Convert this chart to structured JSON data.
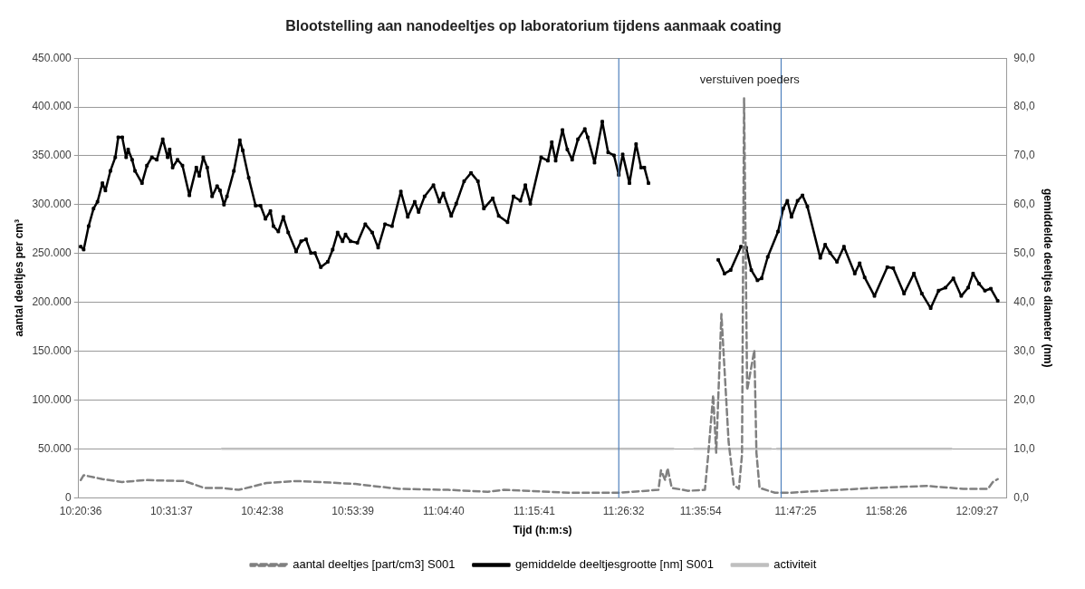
{
  "chart_data": {
    "type": "line",
    "title": "Blootstelling aan nanodeeltjes op laboratorium tijdens aanmaak coating",
    "xlabel": "Tijd (h:m:s)",
    "ylabel": "aantal deeltjes per cm³",
    "y2label": "gemiddelde deeltjes diameter (nm)",
    "xlim": [
      10.339,
      12.217
    ],
    "xticks": [
      {
        "value": 10.3433,
        "label": "10:20:36"
      },
      {
        "value": 10.5269,
        "label": "10:31:37"
      },
      {
        "value": 10.7106,
        "label": "10:42:38"
      },
      {
        "value": 10.8942,
        "label": "10:53:39"
      },
      {
        "value": 11.0778,
        "label": "11:04:40"
      },
      {
        "value": 11.2614,
        "label": "11:15:41"
      },
      {
        "value": 11.4422,
        "label": "11:26:32"
      },
      {
        "value": 11.5983,
        "label": "11:35:54"
      },
      {
        "value": 11.7903,
        "label": "11:47:25"
      },
      {
        "value": 11.9739,
        "label": "11:58:26"
      },
      {
        "value": 12.1575,
        "label": "12:09:27"
      }
    ],
    "ylim": [
      0,
      450000
    ],
    "yticks": [
      {
        "value": 0,
        "label": "0"
      },
      {
        "value": 50000,
        "label": "50.000"
      },
      {
        "value": 100000,
        "label": "100.000"
      },
      {
        "value": 150000,
        "label": "150.000"
      },
      {
        "value": 200000,
        "label": "200.000"
      },
      {
        "value": 250000,
        "label": "250.000"
      },
      {
        "value": 300000,
        "label": "300.000"
      },
      {
        "value": 350000,
        "label": "350.000"
      },
      {
        "value": 400000,
        "label": "400.000"
      },
      {
        "value": 450000,
        "label": "450.000"
      }
    ],
    "y2lim": [
      0,
      90
    ],
    "y2ticks": [
      {
        "value": 0,
        "label": "0,0"
      },
      {
        "value": 10,
        "label": "10,0"
      },
      {
        "value": 20,
        "label": "20,0"
      },
      {
        "value": 30,
        "label": "30,0"
      },
      {
        "value": 40,
        "label": "40,0"
      },
      {
        "value": 50,
        "label": "50,0"
      },
      {
        "value": 60,
        "label": "60,0"
      },
      {
        "value": 70,
        "label": "70,0"
      },
      {
        "value": 80,
        "label": "80,0"
      },
      {
        "value": 90,
        "label": "90,0"
      }
    ],
    "grid": "y",
    "legend": "bottom",
    "ref_lines": [
      {
        "axis": "x",
        "value": 11.4324,
        "color": "#4f81bd"
      },
      {
        "axis": "x",
        "value": 11.761,
        "color": "#4f81bd"
      }
    ],
    "annotations": [
      "verstuiven poeders"
    ],
    "series": [
      {
        "name": "aantal deeltjes [part/cm3] S001",
        "type": "line",
        "color": "#808080",
        "line_style": "dashed",
        "marker": "none",
        "axis": "y",
        "x": [
          10.3433,
          10.3493,
          10.3873,
          10.4273,
          10.4733,
          10.5533,
          10.5933,
          10.6273,
          10.6633,
          10.7193,
          10.7793,
          10.8273,
          10.8993,
          10.9873,
          11.0873,
          11.1673,
          11.1993,
          11.3341,
          11.4324,
          11.5127,
          11.5178,
          11.5262,
          11.5312,
          11.5396,
          11.5732,
          11.6067,
          11.6129,
          11.6234,
          11.6296,
          11.6401,
          11.6547,
          11.6651,
          11.6755,
          11.6818,
          11.686,
          11.6922,
          11.7068,
          11.711,
          11.7173,
          11.7485,
          11.7757,
          11.8442,
          11.9499,
          12.0557,
          12.1296,
          12.1795,
          12.1894,
          12.1994
        ],
        "values": [
          18000,
          23000,
          19000,
          16000,
          18000,
          17000,
          10000,
          10000,
          8000,
          15000,
          17000,
          16000,
          14000,
          9000,
          8000,
          6000,
          8000,
          5000,
          5000,
          8000,
          28000,
          18000,
          30000,
          10000,
          7000,
          8000,
          41000,
          105000,
          46000,
          188000,
          57000,
          13000,
          9000,
          44000,
          409000,
          110000,
          151000,
          46000,
          10000,
          5000,
          5000,
          7000,
          10000,
          12000,
          9000,
          9000,
          16000,
          19000
        ]
      },
      {
        "name": "gemiddelde deeltjesgrootte [nm] S001",
        "type": "line",
        "color": "#000000",
        "line_style": "solid",
        "marker": "square",
        "axis": "y2",
        "x": [
          10.3433,
          10.3493,
          10.3593,
          10.3693,
          10.3773,
          10.3873,
          10.3933,
          10.4033,
          10.4133,
          10.4193,
          10.4273,
          10.4353,
          10.4393,
          10.4473,
          10.4533,
          10.4673,
          10.4773,
          10.4873,
          10.4973,
          10.5093,
          10.5193,
          10.5233,
          10.5293,
          10.5393,
          10.5493,
          10.5633,
          10.5773,
          10.5833,
          10.5913,
          10.5993,
          10.6093,
          10.6193,
          10.6253,
          10.6333,
          10.6393,
          10.6533,
          10.6653,
          10.6713,
          10.6833,
          10.6973,
          10.7073,
          10.7173,
          10.7273,
          10.7333,
          10.7433,
          10.7533,
          10.7633,
          10.7793,
          10.7893,
          10.7993,
          10.8093,
          10.8173,
          10.8293,
          10.8433,
          10.8533,
          10.8633,
          10.8733,
          10.8793,
          10.8893,
          10.9033,
          10.9193,
          10.9333,
          10.9453,
          10.9593,
          10.9733,
          10.9913,
          11.0053,
          11.0193,
          11.0273,
          11.0393,
          11.0573,
          11.0693,
          11.0773,
          11.0933,
          11.1033,
          11.1193,
          11.1333,
          11.1473,
          11.1593,
          11.1773,
          11.1893,
          11.2073,
          11.2193,
          11.2333,
          11.2433,
          11.2533,
          11.2752,
          11.2889,
          11.2968,
          11.3046,
          11.3184,
          11.3282,
          11.338,
          11.3498,
          11.3636,
          11.3695,
          11.3833,
          11.399,
          11.4108,
          11.4226,
          11.4324,
          11.4403,
          11.454,
          11.4674,
          11.4775,
          11.4842,
          11.4926,
          11.56,
          11.6338,
          11.6463,
          11.6588,
          11.6797,
          11.6901,
          11.7006,
          11.7131,
          11.7214,
          11.7339,
          11.7548,
          11.7652,
          11.7736,
          11.7819,
          11.7943,
          11.8043,
          11.8142,
          11.8402,
          11.8502,
          11.8601,
          11.8741,
          11.8881,
          11.91,
          11.92,
          11.93,
          11.9499,
          11.9759,
          11.9879,
          12.0098,
          12.0298,
          12.0457,
          12.0637,
          12.0797,
          12.0936,
          12.1096,
          12.1256,
          12.1395,
          12.1495,
          12.1615,
          12.1735,
          12.1854,
          12.1994
        ],
        "values": [
          51.4,
          50.8,
          55.6,
          59.2,
          60.6,
          64.4,
          62.9,
          66.9,
          69.7,
          73.8,
          73.8,
          69.7,
          71.3,
          69.2,
          66.9,
          64.4,
          68.0,
          69.7,
          69.2,
          73.4,
          69.7,
          71.3,
          67.6,
          69.2,
          68.0,
          61.9,
          67.6,
          65.9,
          69.7,
          67.6,
          61.7,
          63.8,
          62.9,
          60.0,
          61.7,
          66.9,
          73.2,
          71.1,
          65.5,
          59.8,
          59.8,
          57.1,
          58.7,
          55.6,
          54.5,
          57.5,
          54.3,
          50.4,
          52.5,
          52.9,
          50.1,
          50.1,
          47.2,
          48.3,
          50.8,
          54.3,
          52.5,
          53.9,
          52.5,
          52.2,
          56.0,
          54.3,
          51.2,
          56.0,
          55.6,
          62.7,
          57.5,
          60.6,
          58.5,
          61.7,
          64.0,
          60.6,
          62.3,
          57.7,
          60.2,
          64.8,
          66.5,
          64.8,
          59.2,
          61.3,
          57.7,
          56.4,
          61.7,
          60.8,
          64.0,
          60.2,
          69.7,
          69.0,
          72.8,
          69.0,
          75.3,
          71.3,
          69.2,
          73.4,
          75.5,
          73.8,
          68.6,
          77.0,
          70.7,
          70.1,
          66.1,
          70.3,
          64.4,
          72.4,
          67.6,
          67.6,
          64.4,
          null,
          48.7,
          45.9,
          46.6,
          51.4,
          51.2,
          46.6,
          44.5,
          44.9,
          49.3,
          54.5,
          59.2,
          60.8,
          57.5,
          60.8,
          61.9,
          59.6,
          49.1,
          51.8,
          50.1,
          48.3,
          51.4,
          45.9,
          48.0,
          45.1,
          41.3,
          47.2,
          47.0,
          41.8,
          45.9,
          41.8,
          38.8,
          42.4,
          43.0,
          44.9,
          41.3,
          43.0,
          45.9,
          43.8,
          42.4,
          42.8,
          40.3
        ]
      },
      {
        "name": "activiteit",
        "type": "line",
        "color": "#bfbfbf",
        "line_style": "solid",
        "marker": "none",
        "axis": "y",
        "x": [
          10.6293,
          11.5429,
          11.5636,
          11.5849,
          11.7402,
          11.7465,
          11.7527,
          12.1056
        ],
        "values": [
          50000,
          50000,
          null,
          50000,
          50000,
          null,
          50000,
          50000
        ]
      }
    ]
  }
}
